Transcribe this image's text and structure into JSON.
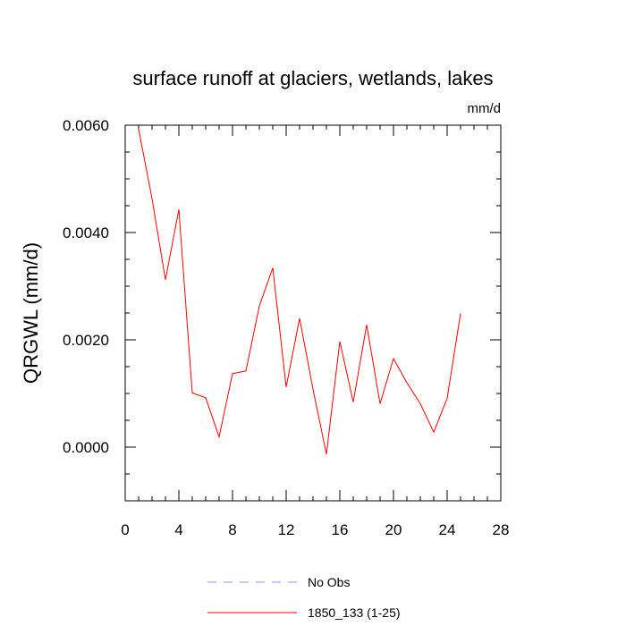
{
  "chart_data": {
    "type": "line",
    "title": "surface runoff at glaciers, wetlands, lakes",
    "units_label": "mm/d",
    "xlabel": "",
    "ylabel": "QRGWL  (mm/d)",
    "xlim": [
      0,
      28
    ],
    "ylim": [
      -0.001,
      0.006
    ],
    "x_ticks": [
      0,
      4,
      8,
      12,
      16,
      20,
      24,
      28
    ],
    "x_tick_labels": [
      "0",
      "4",
      "8",
      "12",
      "16",
      "20",
      "24",
      "28"
    ],
    "y_ticks": [
      0.0,
      0.002,
      0.004,
      0.006
    ],
    "y_tick_labels": [
      "0.0000",
      "0.0020",
      "0.0040",
      "0.0060"
    ],
    "grid": false,
    "legend_position": "bottom",
    "series": [
      {
        "name": "1850_133 (1-25)",
        "color": "#ff0000",
        "x": [
          1,
          2,
          3,
          4,
          5,
          6,
          7,
          8,
          9,
          10,
          11,
          12,
          13,
          14,
          15,
          16,
          17,
          18,
          19,
          20,
          21,
          22,
          23,
          24,
          25
        ],
        "y": [
          0.00593,
          0.00463,
          0.00312,
          0.00443,
          0.00101,
          0.00092,
          0.00019,
          0.00137,
          0.00142,
          0.00263,
          0.00334,
          0.00112,
          0.0024,
          0.00108,
          -0.00013,
          0.00197,
          0.00084,
          0.00228,
          0.00081,
          0.00165,
          0.0012,
          0.00081,
          0.00028,
          0.00091,
          0.00249
        ]
      }
    ],
    "legend": [
      {
        "label": "No Obs",
        "style": "dashed",
        "color": "#8c8cff"
      },
      {
        "label": "1850_133 (1-25)",
        "style": "solid",
        "color": "#ff0000"
      }
    ]
  }
}
